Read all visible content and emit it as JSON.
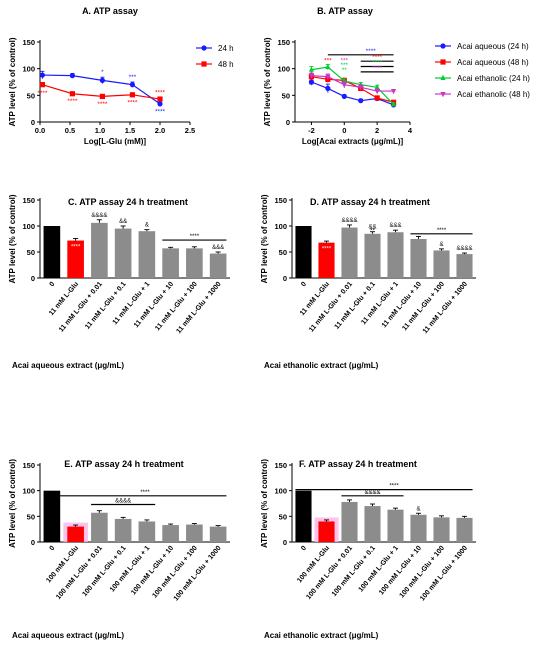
{
  "colors": {
    "black": "#000000",
    "red": "#ff0000",
    "grey": "#8c8c8c",
    "blue": "#1a1aff",
    "green": "#00cc33",
    "magenta": "#cc33cc",
    "highlight": "#ffb3e6"
  },
  "chart_data": [
    {
      "id": "A",
      "type": "line",
      "title": "A. ATP assay",
      "xlabel": "Log[L-Glu (mM)]",
      "ylabel": "ATP level (% of control)",
      "xlim": [
        0,
        2.5
      ],
      "ylim": [
        0,
        150
      ],
      "xticks": [
        "0.0",
        "0.5",
        "1.0",
        "1.5",
        "2.0",
        "2.5"
      ],
      "yticks": [
        "0",
        "50",
        "100",
        "150"
      ],
      "legend_position": "top-right",
      "series": [
        {
          "name": "24 h",
          "color": "blue",
          "marker": "circle",
          "x": [
            0.04,
            0.54,
            1.04,
            1.54,
            2.0
          ],
          "y": [
            88,
            87,
            78,
            70,
            34
          ],
          "err": [
            7,
            4,
            6,
            5,
            3
          ],
          "sig": [
            "",
            "",
            "*",
            "***",
            "****"
          ],
          "sig_pos": [
            "",
            "",
            "above",
            "above",
            "below"
          ]
        },
        {
          "name": "48 h",
          "color": "red",
          "marker": "square",
          "x": [
            0.04,
            0.54,
            1.04,
            1.54,
            2.0
          ],
          "y": [
            70,
            53,
            48,
            51,
            43
          ],
          "err": [
            4,
            2,
            3,
            3,
            3
          ],
          "sig": [
            "****",
            "****",
            "****",
            "****",
            "****"
          ],
          "sig_pos": [
            "below",
            "below",
            "below",
            "below",
            "above"
          ]
        }
      ]
    },
    {
      "id": "B",
      "type": "line",
      "title": "B. ATP assay",
      "xlabel": "Log[Acai extracts (μg/mL)]",
      "ylabel": "ATP level (% of control)",
      "xlim": [
        -3,
        4
      ],
      "ylim": [
        0,
        150
      ],
      "xticks": [
        "-2",
        "0",
        "2",
        "4"
      ],
      "xtick_values": [
        -2,
        0,
        2,
        4
      ],
      "yticks": [
        "0",
        "50",
        "100",
        "150"
      ],
      "legend_position": "right",
      "series": [
        {
          "name": "Acai aqueous (24 h)",
          "color": "blue",
          "marker": "circle",
          "x": [
            -2,
            -1,
            0,
            1,
            2,
            3
          ],
          "y": [
            75,
            63,
            48,
            40,
            44,
            32
          ],
          "err": [
            6,
            8,
            3,
            3,
            4,
            3
          ]
        },
        {
          "name": "Acai aqueous (48 h)",
          "color": "red",
          "marker": "square",
          "x": [
            -2,
            -1,
            0,
            1,
            2,
            3
          ],
          "y": [
            85,
            80,
            78,
            63,
            45,
            37
          ],
          "err": [
            6,
            6,
            4,
            5,
            4,
            3
          ]
        },
        {
          "name": "Acai ethanolic (24 h)",
          "color": "green",
          "marker": "triangle",
          "x": [
            -2,
            -1,
            0,
            1,
            2,
            3
          ],
          "y": [
            98,
            103,
            77,
            70,
            65,
            33
          ],
          "err": [
            6,
            5,
            4,
            4,
            4,
            3
          ]
        },
        {
          "name": "Acai ethanolic (48 h)",
          "color": "magenta",
          "marker": "triangle-down",
          "x": [
            -2,
            -1,
            0,
            1,
            2,
            3
          ],
          "y": [
            87,
            85,
            70,
            65,
            58,
            58
          ],
          "err": [
            5,
            5,
            6,
            5,
            4,
            3
          ]
        }
      ],
      "annotations": [
        {
          "text": "**",
          "color": "blue",
          "x": -2,
          "y": 66
        },
        {
          "text": "***",
          "color": "red",
          "x": -1,
          "y": 112
        },
        {
          "text": "***",
          "color": "green",
          "x": 0,
          "y": 103
        },
        {
          "text": "***",
          "color": "magenta",
          "x": 0,
          "y": 112
        },
        {
          "text": "**",
          "color": "green",
          "x": 0,
          "y": 94
        }
      ],
      "brackets": [
        {
          "x1": -1,
          "x2": 3,
          "y": 126,
          "text": "****",
          "color": "blue"
        },
        {
          "x1": 1,
          "x2": 3,
          "y": 114,
          "text": "****",
          "color": "red"
        },
        {
          "x1": 1,
          "x2": 3,
          "y": 104,
          "text": "****",
          "color": "green"
        },
        {
          "x1": 1,
          "x2": 3,
          "y": 94,
          "text": "****",
          "color": "magenta"
        }
      ]
    },
    {
      "id": "C",
      "type": "bar",
      "title": "C. ATP assay 24 h treatment",
      "xlabel": "Acai aqueous extract (μg/mL)",
      "ylabel": "ATP level (% of control)",
      "ylim": [
        0,
        150
      ],
      "yticks": [
        "0",
        "50",
        "100",
        "150"
      ],
      "categories": [
        "0",
        "11 mM L-Glu",
        "11 mM L-Glu + 0.01",
        "11 mM L-Glu + 0.1",
        "11 mM L-Glu + 1",
        "11 mM L-Glu + 10",
        "11 mM L-Glu + 100",
        "11 mM L-Glu + 1000"
      ],
      "values": [
        100,
        72,
        106,
        95,
        90,
        57,
        57,
        47
      ],
      "err": [
        0,
        4,
        6,
        5,
        3,
        2,
        3,
        3
      ],
      "colors": [
        "black",
        "red",
        "grey",
        "grey",
        "grey",
        "grey",
        "grey",
        "grey"
      ],
      "labels": [
        "",
        "****",
        "&&&&",
        "&&",
        "&",
        "",
        "",
        "&&&"
      ],
      "brackets": [
        {
          "from": 5,
          "to": 7,
          "y": 73,
          "text": "****"
        }
      ],
      "highlight": []
    },
    {
      "id": "D",
      "type": "bar",
      "title": "D. ATP assay 24 h treatment",
      "xlabel": "Acai ethanolic extract (μg/mL)",
      "ylabel": "ATP level (% of control)",
      "ylim": [
        0,
        150
      ],
      "yticks": [
        "0",
        "50",
        "100",
        "150"
      ],
      "categories": [
        "0",
        "11 mM L-Glu",
        "11 mM L-Glu + 0.01",
        "11 mM L-Glu + 0.1",
        "11 mM L-Glu + 1",
        "11 mM L-Glu + 10",
        "11 mM L-Glu + 100",
        "11 mM L-Glu + 1000"
      ],
      "values": [
        100,
        68,
        97,
        85,
        88,
        75,
        53,
        46
      ],
      "err": [
        0,
        3,
        5,
        4,
        4,
        5,
        3,
        2
      ],
      "colors": [
        "black",
        "red",
        "grey",
        "grey",
        "grey",
        "grey",
        "grey",
        "grey"
      ],
      "labels": [
        "",
        "****",
        "&&&&",
        "&&",
        "&&&",
        "",
        "&",
        "&&&&"
      ],
      "labels2": [
        "",
        "",
        "",
        "**",
        "",
        "",
        "",
        ""
      ],
      "brackets": [
        {
          "from": 5,
          "to": 7,
          "y": 85,
          "text": "****"
        }
      ],
      "highlight": []
    },
    {
      "id": "E",
      "type": "bar",
      "title": "E. ATP assay 24 h treatment",
      "xlabel": "Acai aqueous extract (μg/mL)",
      "ylabel": "ATP level (% of control)",
      "ylim": [
        0,
        150
      ],
      "yticks": [
        "0",
        "50",
        "100",
        "150"
      ],
      "categories": [
        "0",
        "100 mM L-Glu",
        "100 mM L-Glu + 0.01",
        "100 mM L-Glu + 0.1",
        "100 mM L-Glu + 1",
        "100 mM L-Glu + 10",
        "100 mM L-Glu + 100",
        "100 mM L-Glu + 1000"
      ],
      "values": [
        100,
        30,
        57,
        45,
        40,
        33,
        34,
        30
      ],
      "err": [
        0,
        3,
        4,
        3,
        3,
        2,
        2,
        2
      ],
      "colors": [
        "black",
        "red",
        "grey",
        "grey",
        "grey",
        "grey",
        "grey",
        "grey"
      ],
      "labels": [
        "",
        "",
        "",
        "",
        "",
        "",
        "",
        ""
      ],
      "brackets": [
        {
          "from": 0,
          "to": 7,
          "y": 90,
          "text": "****"
        },
        {
          "from": 2,
          "to": 4,
          "y": 73,
          "text": "&&&&"
        }
      ],
      "highlight": [
        1
      ]
    },
    {
      "id": "F",
      "type": "bar",
      "title": "F. ATP assay 24 h treatment",
      "xlabel": "Acai ethanolic extract (μg/mL)",
      "ylabel": "ATP level (% of control)",
      "ylim": [
        0,
        150
      ],
      "yticks": [
        "0",
        "50",
        "100",
        "150"
      ],
      "categories": [
        "0",
        "100 mM L-Glu",
        "100 mM L-Glu + 0.01",
        "100 mM L-Glu + 0.1",
        "100 mM L-Glu + 1",
        "100 mM L-Glu + 10",
        "100 mM L-Glu + 100",
        "100 mM L-Glu + 1000"
      ],
      "values": [
        100,
        40,
        78,
        70,
        63,
        53,
        48,
        47
      ],
      "err": [
        0,
        3,
        4,
        4,
        3,
        3,
        3,
        3
      ],
      "colors": [
        "black",
        "red",
        "grey",
        "grey",
        "grey",
        "grey",
        "grey",
        "grey"
      ],
      "labels": [
        "",
        "",
        "",
        "",
        "",
        "&",
        "",
        ""
      ],
      "brackets": [
        {
          "from": 0,
          "to": 7,
          "y": 102,
          "text": "****"
        },
        {
          "from": 2,
          "to": 4,
          "y": 90,
          "text": "&&&&"
        }
      ],
      "highlight": [
        1
      ]
    }
  ]
}
